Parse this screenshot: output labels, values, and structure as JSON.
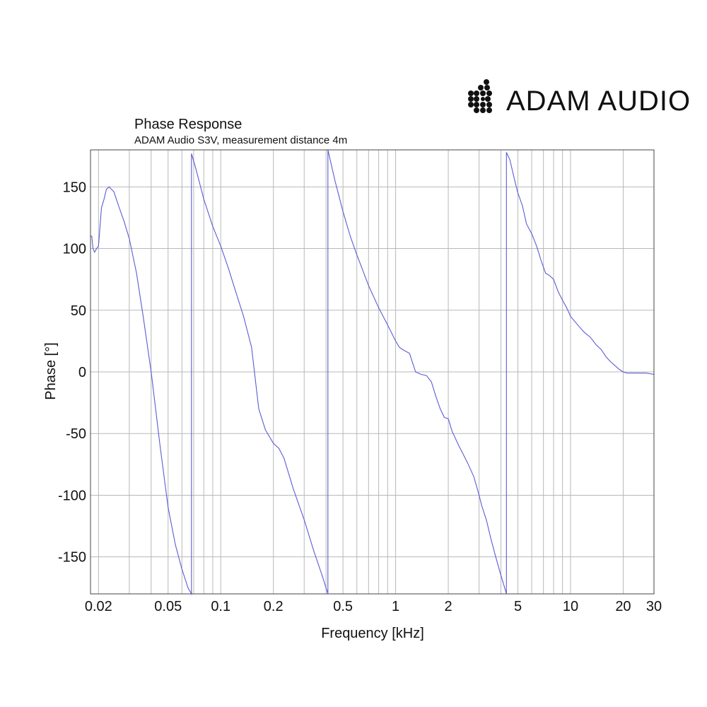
{
  "brand": {
    "name": "ADAM AUDIO",
    "logo_icon": "adam-audio-dot-logo-icon"
  },
  "chart_data": {
    "type": "line",
    "title": "Phase Response",
    "subtitle": "ADAM Audio S3V, measurement distance 4m",
    "xlabel": "Frequency [kHz]",
    "ylabel": "Phase [°]",
    "xscale": "log",
    "xlim": [
      0.018,
      30
    ],
    "ylim": [
      -180,
      180
    ],
    "xticks": [
      {
        "value": 0.02,
        "label": "0.02"
      },
      {
        "value": 0.05,
        "label": "0.05"
      },
      {
        "value": 0.1,
        "label": "0.1"
      },
      {
        "value": 0.2,
        "label": "0.2"
      },
      {
        "value": 0.5,
        "label": "0.5"
      },
      {
        "value": 1,
        "label": "1"
      },
      {
        "value": 2,
        "label": "2"
      },
      {
        "value": 5,
        "label": "5"
      },
      {
        "value": 10,
        "label": "10"
      },
      {
        "value": 20,
        "label": "20"
      },
      {
        "value": 30,
        "label": "30"
      }
    ],
    "yticks": [
      {
        "value": 150,
        "label": "150"
      },
      {
        "value": 100,
        "label": "100"
      },
      {
        "value": 50,
        "label": "50"
      },
      {
        "value": 0,
        "label": "0"
      },
      {
        "value": -50,
        "label": "-50"
      },
      {
        "value": -100,
        "label": "-100"
      },
      {
        "value": -150,
        "label": "-150"
      }
    ],
    "grid": true,
    "line_color": "#5b5bd6",
    "series": [
      {
        "name": "",
        "x": [
          0.018,
          0.0183,
          0.0186,
          0.019,
          0.0195,
          0.02,
          0.0208,
          0.0215,
          0.0222,
          0.023,
          0.0245,
          0.026,
          0.028,
          0.03,
          0.033,
          0.036,
          0.04,
          0.045,
          0.05,
          0.055,
          0.06,
          0.065,
          0.068,
          0.068,
          0.072,
          0.08,
          0.09,
          0.1,
          0.11,
          0.12,
          0.135,
          0.15,
          0.165,
          0.18,
          0.2,
          0.215,
          0.23,
          0.26,
          0.3,
          0.34,
          0.38,
          0.41,
          0.41,
          0.45,
          0.5,
          0.55,
          0.6,
          0.7,
          0.8,
          0.9,
          1.0,
          1.05,
          1.1,
          1.2,
          1.3,
          1.4,
          1.5,
          1.6,
          1.7,
          1.8,
          1.9,
          2.0,
          2.1,
          2.3,
          2.5,
          2.6,
          2.8,
          3.0,
          3.1,
          3.3,
          3.5,
          3.7,
          4.0,
          4.2,
          4.3,
          4.3,
          4.5,
          4.8,
          5.0,
          5.3,
          5.6,
          6.0,
          6.4,
          6.8,
          7.2,
          7.6,
          8.0,
          8.5,
          9.0,
          9.5,
          10.0,
          11.0,
          12.0,
          13.0,
          14.0,
          15.0,
          16.0,
          17.0,
          18.0,
          19.0,
          20.0,
          21.0,
          23.0,
          25.0,
          27.0,
          30.0
        ],
        "y": [
          110,
          110,
          100,
          97,
          100,
          102,
          133,
          140,
          148,
          150,
          146,
          135,
          122,
          108,
          80,
          45,
          0,
          -60,
          -110,
          -140,
          -160,
          -175,
          -180,
          177,
          165,
          140,
          118,
          102,
          85,
          68,
          45,
          20,
          -30,
          -47,
          -58,
          -62,
          -70,
          -95,
          -120,
          -145,
          -165,
          -180,
          180,
          155,
          130,
          110,
          95,
          70,
          52,
          38,
          25,
          20,
          18,
          15,
          0,
          -2,
          -3,
          -8,
          -20,
          -30,
          -37,
          -38,
          -48,
          -60,
          -70,
          -75,
          -85,
          -100,
          -108,
          -120,
          -135,
          -148,
          -165,
          -175,
          -180,
          178,
          172,
          155,
          145,
          135,
          120,
          112,
          102,
          90,
          80,
          78,
          75,
          65,
          58,
          52,
          45,
          38,
          32,
          28,
          22,
          18,
          12,
          8,
          5,
          2,
          0,
          -1,
          -1,
          -1,
          -1,
          -2
        ]
      }
    ]
  }
}
